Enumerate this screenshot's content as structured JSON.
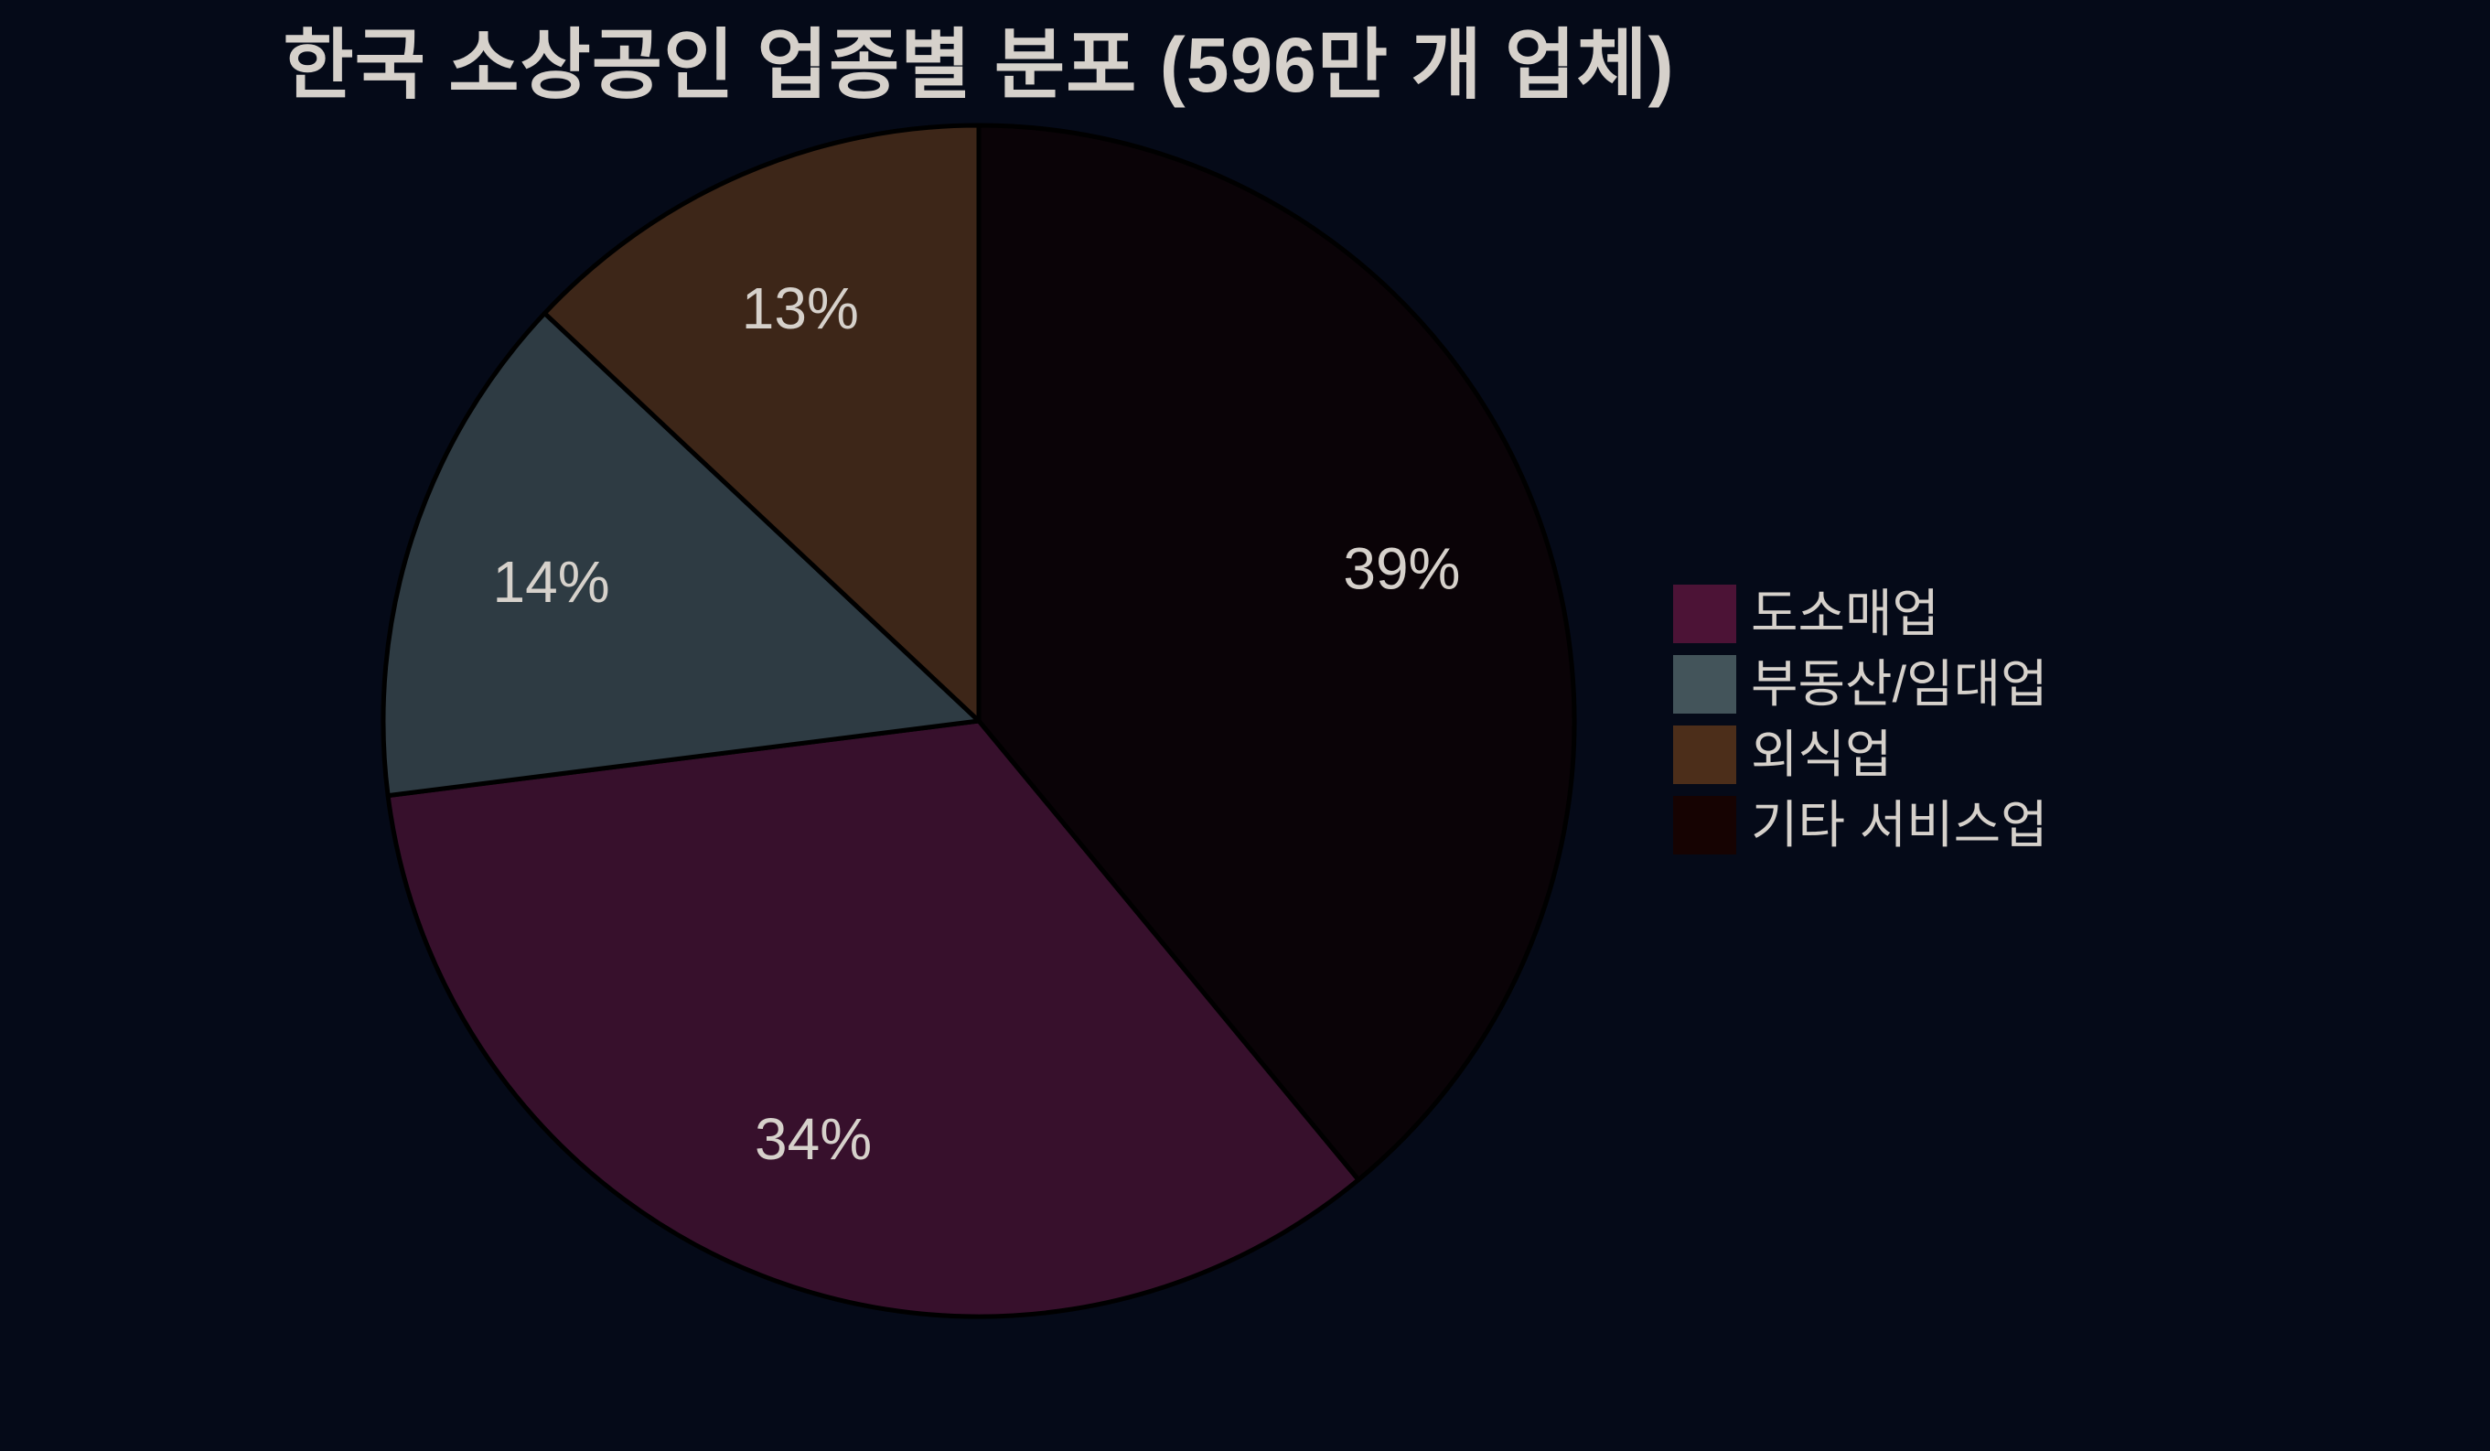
{
  "page": {
    "background": "#050a18",
    "text_color": "#d6d1cb",
    "wedge_edge_color": "#000000"
  },
  "chart_data": {
    "type": "pie",
    "title": "한국 소상공인 업종별 분포 (596만 개 업체)",
    "slices": [
      {
        "id": "wholesale-retail",
        "label": "도소매업",
        "value": 34,
        "pct_label": "34%",
        "slice_color": "#37102c",
        "legend_color": "#4c1336"
      },
      {
        "id": "real-estate-rental",
        "label": "부동산/임대업",
        "value": 14,
        "pct_label": "14%",
        "slice_color": "#2e3b43",
        "legend_color": "#43545a"
      },
      {
        "id": "food-service",
        "label": "외식업",
        "value": 13,
        "pct_label": "13%",
        "slice_color": "#3d2618",
        "legend_color": "#4c2e1a"
      },
      {
        "id": "other-services",
        "label": "기타 서비스업",
        "value": 39,
        "pct_label": "39%",
        "slice_color": "#0a0307",
        "legend_color": "#160302"
      }
    ],
    "start_angle_deg": 90,
    "direction": "clockwise",
    "draw_order_clockwise_from_top": [
      3,
      0,
      1,
      2
    ],
    "pct_label_distance": 0.755,
    "legend_position": "center right",
    "grid": false
  }
}
